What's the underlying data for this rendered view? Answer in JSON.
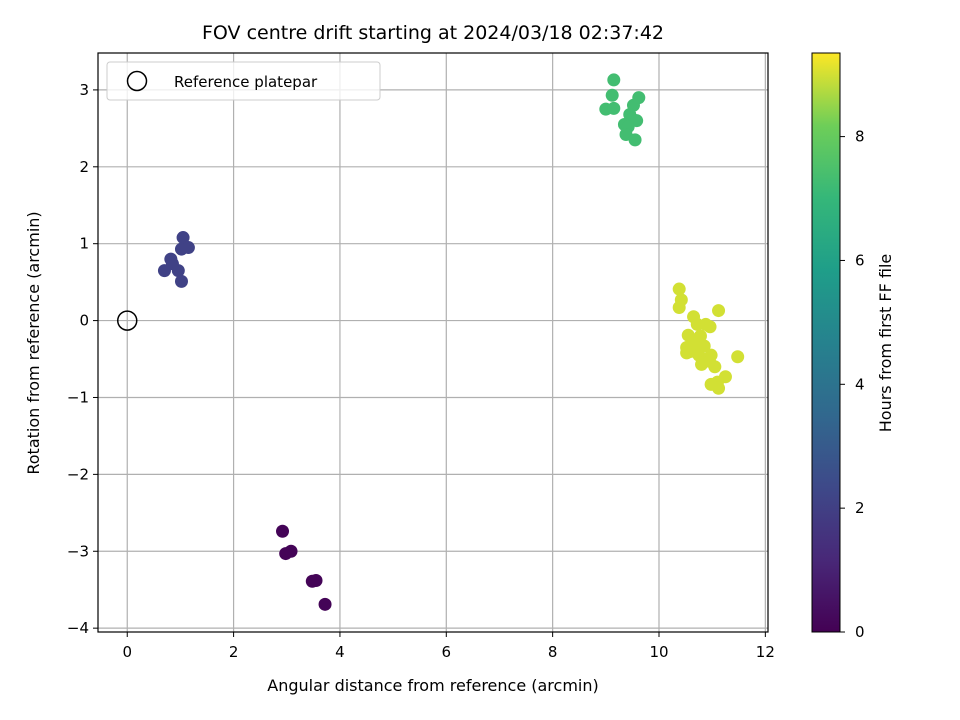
{
  "chart_data": {
    "type": "scatter",
    "title": "FOV centre drift starting at 2024/03/18 02:37:42",
    "xlabel": "Angular distance from reference (arcmin)",
    "ylabel": "Rotation from reference (arcmin)",
    "xlim": [
      -0.55,
      12.05
    ],
    "ylim": [
      -4.05,
      3.48
    ],
    "xticks": [
      0,
      2,
      4,
      6,
      8,
      10,
      12
    ],
    "yticks": [
      -4,
      -3,
      -2,
      -1,
      0,
      1,
      2,
      3
    ],
    "grid": true,
    "legend": {
      "placement": "top-left",
      "entries": [
        "Reference platepar"
      ]
    },
    "reference_point": {
      "x": 0.0,
      "y": 0.0
    },
    "colormap": "viridis",
    "colorbar": {
      "label": "Hours from first FF file",
      "min": 0,
      "max": 9.35,
      "ticks": [
        0,
        2,
        4,
        6,
        8
      ]
    },
    "points": [
      {
        "x": 2.92,
        "y": -2.74,
        "c": 0.1
      },
      {
        "x": 2.98,
        "y": -3.03,
        "c": 0.1
      },
      {
        "x": 3.08,
        "y": -3.0,
        "c": 0.1
      },
      {
        "x": 3.48,
        "y": -3.39,
        "c": 0.1
      },
      {
        "x": 3.55,
        "y": -3.38,
        "c": 0.1
      },
      {
        "x": 3.72,
        "y": -3.69,
        "c": 0.1
      },
      {
        "x": 0.7,
        "y": 0.65,
        "c": 2.1
      },
      {
        "x": 0.82,
        "y": 0.8,
        "c": 2.1
      },
      {
        "x": 0.85,
        "y": 0.74,
        "c": 2.1
      },
      {
        "x": 0.96,
        "y": 0.65,
        "c": 2.1
      },
      {
        "x": 1.02,
        "y": 0.51,
        "c": 2.1
      },
      {
        "x": 1.02,
        "y": 0.93,
        "c": 2.1
      },
      {
        "x": 1.05,
        "y": 1.08,
        "c": 2.1
      },
      {
        "x": 1.15,
        "y": 0.95,
        "c": 2.1
      },
      {
        "x": 9.15,
        "y": 3.13,
        "c": 7.3
      },
      {
        "x": 9.12,
        "y": 2.93,
        "c": 7.3
      },
      {
        "x": 9.0,
        "y": 2.75,
        "c": 7.3
      },
      {
        "x": 9.15,
        "y": 2.76,
        "c": 7.3
      },
      {
        "x": 9.52,
        "y": 2.8,
        "c": 7.3
      },
      {
        "x": 9.62,
        "y": 2.9,
        "c": 7.3
      },
      {
        "x": 9.45,
        "y": 2.68,
        "c": 7.3
      },
      {
        "x": 9.5,
        "y": 2.62,
        "c": 7.3
      },
      {
        "x": 9.58,
        "y": 2.6,
        "c": 7.3
      },
      {
        "x": 9.35,
        "y": 2.55,
        "c": 7.3
      },
      {
        "x": 9.42,
        "y": 2.52,
        "c": 7.3
      },
      {
        "x": 9.38,
        "y": 2.42,
        "c": 7.3
      },
      {
        "x": 9.55,
        "y": 2.35,
        "c": 7.3
      },
      {
        "x": 10.38,
        "y": 0.41,
        "c": 9.0
      },
      {
        "x": 10.42,
        "y": 0.27,
        "c": 9.0
      },
      {
        "x": 10.38,
        "y": 0.17,
        "c": 9.0
      },
      {
        "x": 10.65,
        "y": 0.05,
        "c": 9.0
      },
      {
        "x": 11.12,
        "y": 0.13,
        "c": 9.0
      },
      {
        "x": 10.72,
        "y": -0.05,
        "c": 9.0
      },
      {
        "x": 10.88,
        "y": -0.05,
        "c": 9.0
      },
      {
        "x": 10.96,
        "y": -0.08,
        "c": 9.0
      },
      {
        "x": 10.55,
        "y": -0.19,
        "c": 9.0
      },
      {
        "x": 10.78,
        "y": -0.2,
        "c": 9.0
      },
      {
        "x": 10.62,
        "y": -0.27,
        "c": 9.0
      },
      {
        "x": 10.7,
        "y": -0.32,
        "c": 9.0
      },
      {
        "x": 10.52,
        "y": -0.35,
        "c": 9.0
      },
      {
        "x": 10.85,
        "y": -0.33,
        "c": 9.0
      },
      {
        "x": 10.6,
        "y": -0.4,
        "c": 9.0
      },
      {
        "x": 10.52,
        "y": -0.42,
        "c": 9.0
      },
      {
        "x": 10.98,
        "y": -0.45,
        "c": 9.0
      },
      {
        "x": 10.75,
        "y": -0.45,
        "c": 9.0
      },
      {
        "x": 11.48,
        "y": -0.47,
        "c": 9.0
      },
      {
        "x": 10.82,
        "y": -0.55,
        "c": 9.0
      },
      {
        "x": 11.05,
        "y": -0.6,
        "c": 9.0
      },
      {
        "x": 10.8,
        "y": -0.57,
        "c": 9.0
      },
      {
        "x": 10.95,
        "y": -0.53,
        "c": 9.0
      },
      {
        "x": 11.25,
        "y": -0.73,
        "c": 9.0
      },
      {
        "x": 11.1,
        "y": -0.8,
        "c": 9.0
      },
      {
        "x": 10.98,
        "y": -0.83,
        "c": 9.0
      },
      {
        "x": 11.12,
        "y": -0.88,
        "c": 9.0
      }
    ]
  }
}
